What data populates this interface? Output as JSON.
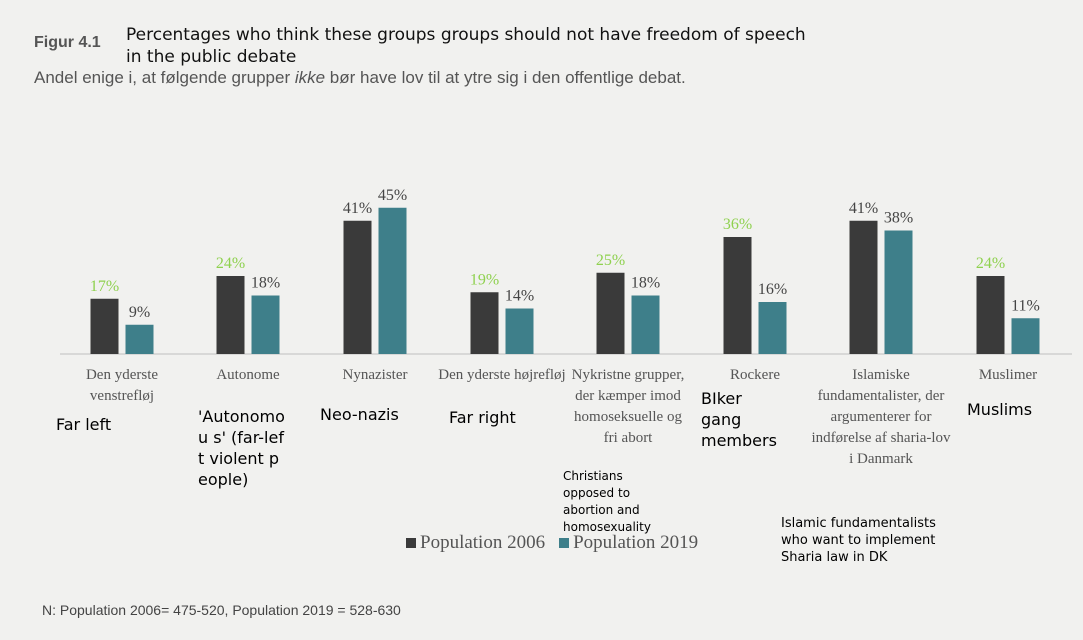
{
  "header": {
    "figure_label": "Figur 4.1",
    "title_en": "Percentages who think these groups groups should not have freedom of speech in the public debate",
    "subtitle_pre": "Andel enige i, at følgende grupper ",
    "subtitle_em": "ikke",
    "subtitle_post": " bør have lov til at ytre sig i den offentlige debat."
  },
  "colors": {
    "s2006": "#3a3a3a",
    "s2019": "#3e7f8a",
    "label_green": "#8fd14f",
    "label_grey": "#444444"
  },
  "chart_data": {
    "type": "bar",
    "categories": [
      "Den yderste venstrefløj",
      "Autonome",
      "Nynazister",
      "Den yderste højrefløj",
      "Nykristne grupper, der kæmper imod homoseksuelle og fri abort",
      "Rockere",
      "Islamiske fundamentalister, der argumenterer for indførelse af sharia-lov i Danmark",
      "Muslimer"
    ],
    "series": [
      {
        "name": "Population 2006",
        "values": [
          17,
          24,
          41,
          19,
          25,
          36,
          41,
          24
        ]
      },
      {
        "name": "Population 2019",
        "values": [
          9,
          18,
          45,
          14,
          18,
          16,
          38,
          11
        ]
      }
    ],
    "data_labels_2006": [
      "17%",
      "24%",
      "41%",
      "19%",
      "25%",
      "36%",
      "41%",
      "24%"
    ],
    "data_labels_2019": [
      "9%",
      "18%",
      "45%",
      "14%",
      "18%",
      "16%",
      "38%",
      "11%"
    ],
    "ylim": [
      0,
      50
    ],
    "grid": false,
    "legend": "bottom"
  },
  "annotations": {
    "far_left": "Far left",
    "autonomous": "'Autonomou s' (far-left violent people)",
    "neo_nazis": "Neo-nazis",
    "far_right": "Far right",
    "christians": "Christians opposed to abortion and homosexuality",
    "bikers": "BIker gang members",
    "islamic": "Islamic fundamentalists who want to implement Sharia law in DK",
    "muslims": "Muslims"
  },
  "footnote": "N: Population 2006= 475-520, Population 2019 = 528-630"
}
